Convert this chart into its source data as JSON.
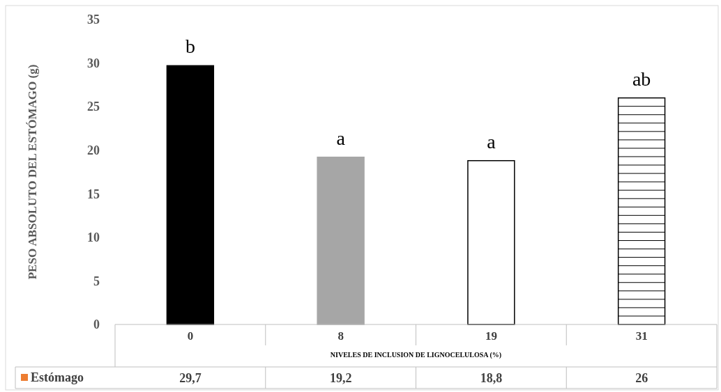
{
  "chart_data": {
    "type": "bar",
    "xlabel": "NIVELES DE INCLUSION DE LIGNOCELULOSA (%)",
    "ylabel": "PESO ABSOLUTO DEL ESTÓMAGO (g)",
    "categories": [
      "0",
      "8",
      "19",
      "31"
    ],
    "series": [
      {
        "name": "Estómago",
        "color": "#ed7d31",
        "colors": [
          "#000000",
          "#a6a6a6",
          "#ffffff",
          "#ffffff"
        ],
        "values": [
          29.7,
          19.2,
          18.8,
          26
        ],
        "value_labels": [
          "29,7",
          "19,2",
          "18,8",
          "26"
        ]
      }
    ],
    "ylim": [
      0,
      35
    ],
    "yticks": [
      0,
      5,
      10,
      15,
      20,
      25,
      30,
      35
    ],
    "grid": false,
    "legend": "bottom",
    "annotations": [
      {
        "text": "b",
        "x": "0",
        "y": 29.7
      },
      {
        "text": "a",
        "x": "8",
        "y": 19.2
      },
      {
        "text": "a",
        "x": "19",
        "y": 18.8
      },
      {
        "text": "ab",
        "x": "31",
        "y": 26
      }
    ]
  }
}
